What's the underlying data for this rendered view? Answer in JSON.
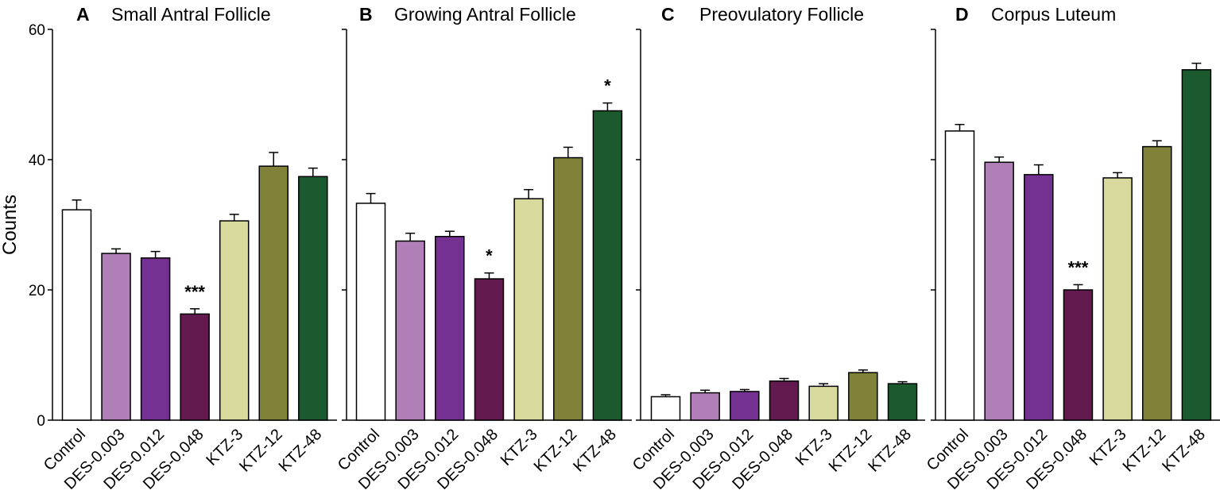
{
  "chart_data": [
    {
      "type": "bar",
      "panel": "A",
      "title": "Small Antral Follicle",
      "ylabel": "Counts",
      "ylim": [
        0,
        60
      ],
      "yticks": [
        0,
        20,
        40,
        60
      ],
      "categories": [
        "Control",
        "DES-0.003",
        "DES-0.012",
        "DES-0.048",
        "KTZ-3",
        "KTZ-12",
        "KTZ-48"
      ],
      "values": [
        32.3,
        25.6,
        24.9,
        16.3,
        30.6,
        39.0,
        37.4
      ],
      "errors": [
        1.5,
        0.7,
        1.0,
        0.8,
        1.0,
        2.1,
        1.3
      ],
      "colors": [
        "#ffffff",
        "#b07fb7",
        "#743191",
        "#621a4f",
        "#d8d99d",
        "#7f8238",
        "#1b5a2f"
      ],
      "significance": [
        "",
        "",
        "",
        "***",
        "",
        "",
        ""
      ]
    },
    {
      "type": "bar",
      "panel": "B",
      "title": "Growing Antral Follicle",
      "ylim": [
        0,
        60
      ],
      "categories": [
        "Control",
        "DES-0.003",
        "DES-0.012",
        "DES-0.048",
        "KTZ-3",
        "KTZ-12",
        "KTZ-48"
      ],
      "values": [
        33.3,
        27.5,
        28.2,
        21.7,
        34.0,
        40.3,
        47.5
      ],
      "errors": [
        1.5,
        1.2,
        0.8,
        0.9,
        1.4,
        1.6,
        1.2
      ],
      "colors": [
        "#ffffff",
        "#b07fb7",
        "#743191",
        "#621a4f",
        "#d8d99d",
        "#7f8238",
        "#1b5a2f"
      ],
      "significance": [
        "",
        "",
        "",
        "*",
        "",
        "",
        "*"
      ]
    },
    {
      "type": "bar",
      "panel": "C",
      "title": "Preovulatory Follicle",
      "ylim": [
        0,
        60
      ],
      "categories": [
        "Control",
        "DES-0.003",
        "DES-0.012",
        "DES-0.048",
        "KTZ-3",
        "KTZ-12",
        "KTZ-48"
      ],
      "values": [
        3.6,
        4.2,
        4.4,
        6.0,
        5.2,
        7.3,
        5.6
      ],
      "errors": [
        0.3,
        0.4,
        0.3,
        0.4,
        0.4,
        0.4,
        0.3
      ],
      "colors": [
        "#ffffff",
        "#b07fb7",
        "#743191",
        "#621a4f",
        "#d8d99d",
        "#7f8238",
        "#1b5a2f"
      ],
      "significance": [
        "",
        "",
        "",
        "",
        "",
        "",
        ""
      ]
    },
    {
      "type": "bar",
      "panel": "D",
      "title": "Corpus Luteum",
      "ylim": [
        0,
        60
      ],
      "categories": [
        "Control",
        "DES-0.003",
        "DES-0.012",
        "DES-0.048",
        "KTZ-3",
        "KTZ-12",
        "KTZ-48"
      ],
      "values": [
        44.4,
        39.6,
        37.7,
        20.0,
        37.2,
        42.0,
        53.8
      ],
      "errors": [
        1.0,
        0.8,
        1.5,
        0.8,
        0.8,
        0.9,
        1.0
      ],
      "colors": [
        "#ffffff",
        "#b07fb7",
        "#743191",
        "#621a4f",
        "#d8d99d",
        "#7f8238",
        "#1b5a2f"
      ],
      "significance": [
        "",
        "",
        "",
        "***",
        "",
        "",
        ""
      ]
    }
  ]
}
